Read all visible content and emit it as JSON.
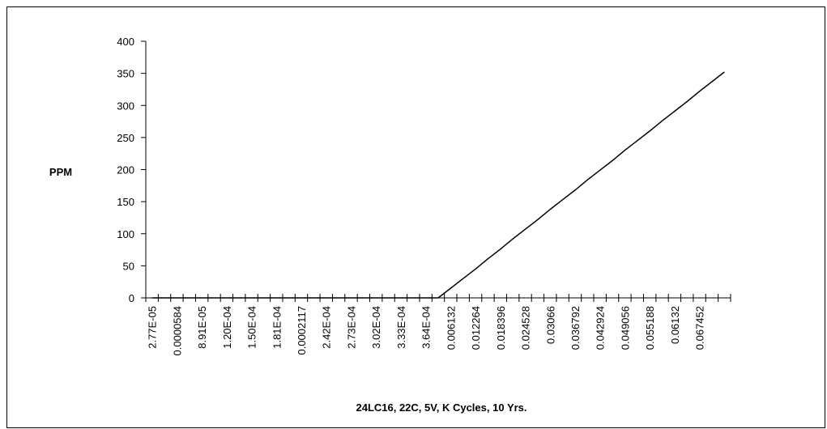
{
  "chart_data": {
    "type": "line",
    "y_label": "PPM",
    "x_label": "24LC16, 22C, 5V, K Cycles, 10 Yrs.",
    "categories": [
      "2.77E-05",
      null,
      "0.0000584",
      null,
      "8.91E-05",
      null,
      "1.20E-04",
      null,
      "1.50E-04",
      null,
      "1.81E-04",
      null,
      "0.0002117",
      null,
      "2.42E-04",
      null,
      "2.73E-04",
      null,
      "3.02E-04",
      null,
      "3.33E-04",
      null,
      "3.64E-04",
      null,
      "0.006132",
      null,
      "0.012264",
      null,
      "0.018396",
      null,
      "0.024528",
      null,
      "0.03066",
      null,
      "0.036792",
      null,
      "0.042924",
      null,
      "0.049056",
      null,
      "0.055188",
      null,
      "0.06132",
      null,
      "0.067452",
      null,
      null
    ],
    "series": [
      {
        "name": "PPM",
        "color": "#000000",
        "values": [
          0,
          0,
          0,
          0,
          0,
          0,
          0,
          0,
          0,
          0,
          0,
          0,
          0,
          0,
          0,
          0,
          0,
          0,
          0,
          0,
          0,
          0,
          0,
          0,
          15,
          30,
          45,
          61,
          76,
          92,
          107,
          122,
          138,
          153,
          168,
          184,
          199,
          214,
          230,
          245,
          260,
          276,
          291,
          306,
          322,
          337,
          352
        ]
      }
    ],
    "ylim": [
      0,
      400
    ],
    "yticks": [
      0,
      50,
      100,
      150,
      200,
      250,
      300,
      350,
      400
    ],
    "grid": false
  }
}
